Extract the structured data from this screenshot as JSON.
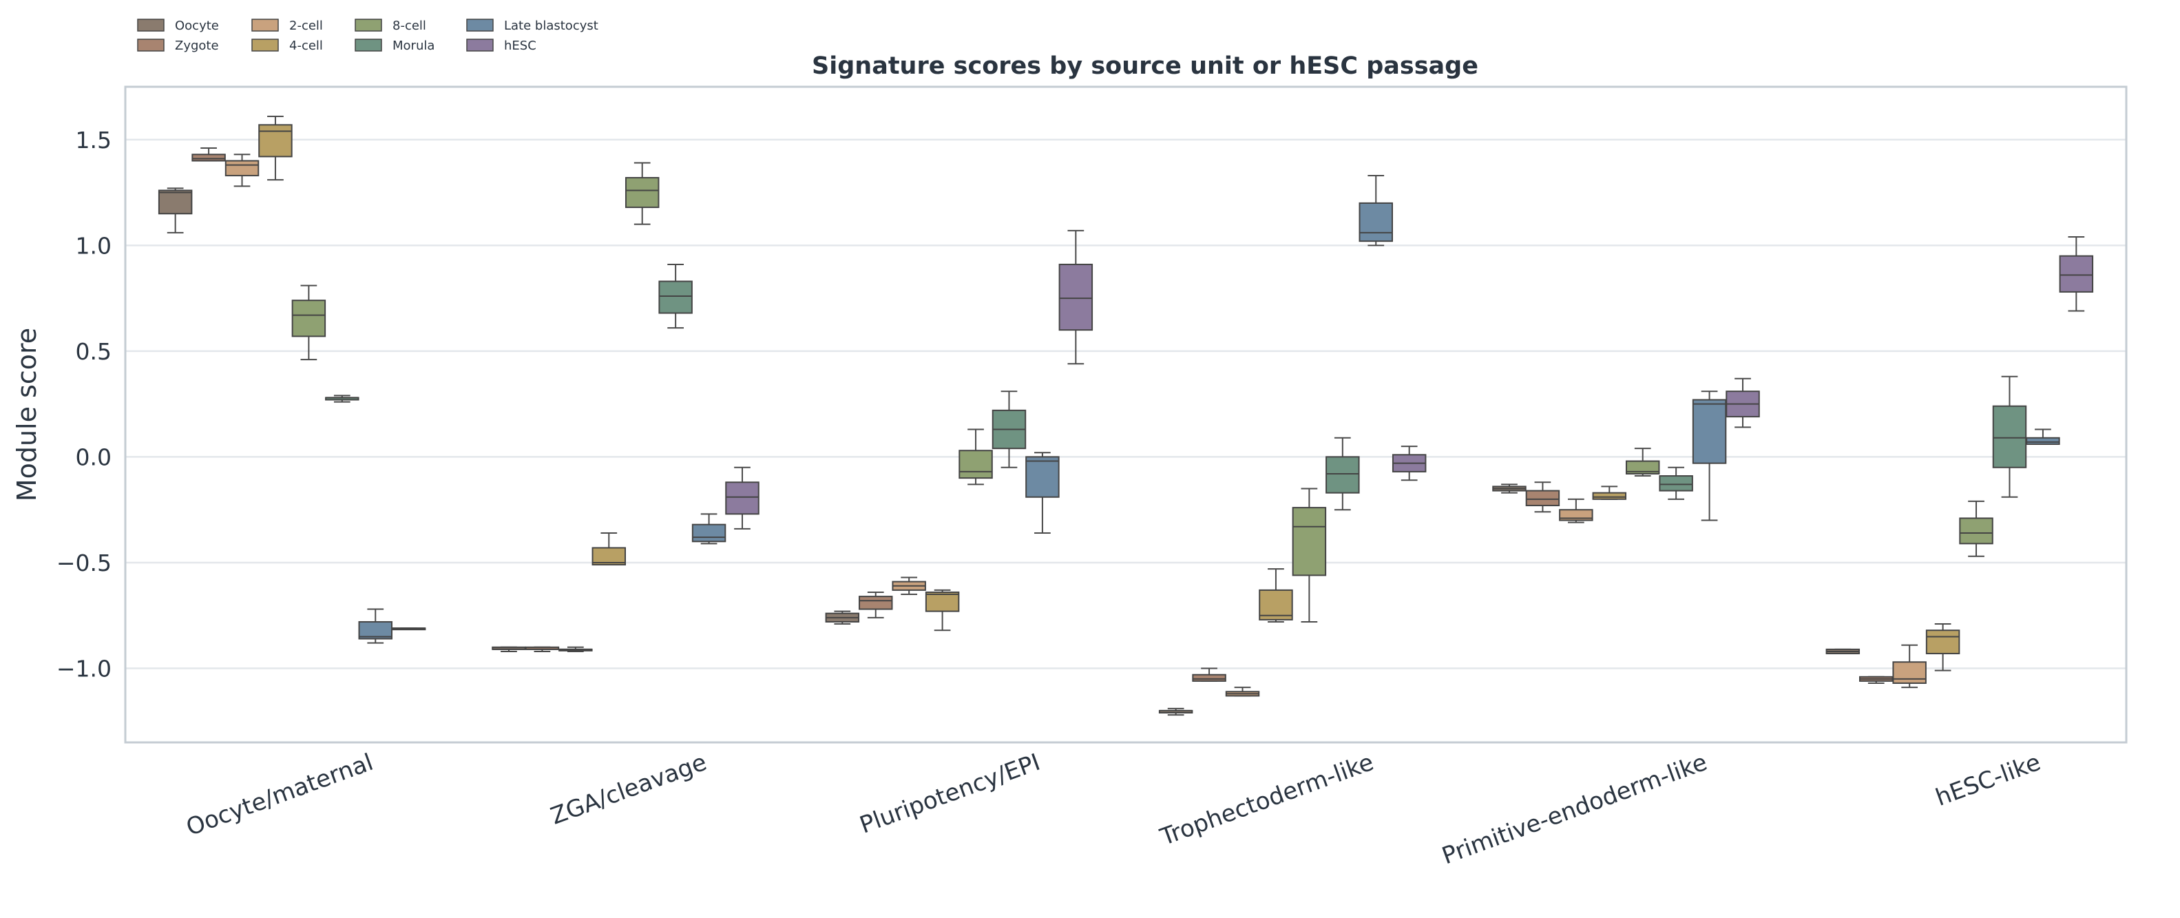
{
  "chart_data": {
    "type": "box",
    "title": "Signature scores by source unit or hESC passage",
    "xlabel": "",
    "ylabel": "Module score",
    "ylim": [
      -1.35,
      1.75
    ],
    "yticks": [
      -1.0,
      -0.5,
      0.0,
      0.5,
      1.0,
      1.5
    ],
    "ytick_labels": [
      "−1.0",
      "−0.5",
      "0.0",
      "0.5",
      "1.0",
      "1.5"
    ],
    "grid": "horizontal",
    "legend_position": "top-left, above plot",
    "categories": [
      "Oocyte/maternal",
      "ZGA/cleavage",
      "Pluripotency/EPI",
      "Trophectoderm-like",
      "Primitive-endoderm-like",
      "hESC-like"
    ],
    "series": [
      {
        "name": "Oocyte",
        "color": "#8a7b6e",
        "boxes": [
          {
            "whislo": 1.06,
            "q1": 1.15,
            "med": 1.25,
            "q3": 1.26,
            "whishi": 1.27
          },
          {
            "whislo": -0.92,
            "q1": -0.91,
            "med": -0.91,
            "q3": -0.9,
            "whishi": -0.9
          },
          {
            "whislo": -0.79,
            "q1": -0.78,
            "med": -0.76,
            "q3": -0.74,
            "whishi": -0.73
          },
          {
            "whislo": -1.22,
            "q1": -1.21,
            "med": -1.2,
            "q3": -1.2,
            "whishi": -1.19
          },
          {
            "whislo": -0.17,
            "q1": -0.16,
            "med": -0.15,
            "q3": -0.14,
            "whishi": -0.13
          },
          {
            "whislo": -0.93,
            "q1": -0.93,
            "med": -0.92,
            "q3": -0.91,
            "whishi": -0.91
          }
        ]
      },
      {
        "name": "Zygote",
        "color": "#a88470",
        "boxes": [
          {
            "whislo": 1.4,
            "q1": 1.4,
            "med": 1.41,
            "q3": 1.43,
            "whishi": 1.46
          },
          {
            "whislo": -0.92,
            "q1": -0.91,
            "med": -0.91,
            "q3": -0.9,
            "whishi": -0.9
          },
          {
            "whislo": -0.76,
            "q1": -0.72,
            "med": -0.68,
            "q3": -0.66,
            "whishi": -0.64
          },
          {
            "whislo": -1.06,
            "q1": -1.06,
            "med": -1.05,
            "q3": -1.03,
            "whishi": -1.0
          },
          {
            "whislo": -0.26,
            "q1": -0.23,
            "med": -0.2,
            "q3": -0.16,
            "whishi": -0.12
          },
          {
            "whislo": -1.07,
            "q1": -1.06,
            "med": -1.05,
            "q3": -1.04,
            "whishi": -1.04
          }
        ]
      },
      {
        "name": "2-cell",
        "color": "#c9a27e",
        "boxes": [
          {
            "whislo": 1.28,
            "q1": 1.33,
            "med": 1.38,
            "q3": 1.4,
            "whishi": 1.43
          },
          {
            "whislo": -0.92,
            "q1": -0.91,
            "med": -0.91,
            "q3": -0.91,
            "whishi": -0.9
          },
          {
            "whislo": -0.65,
            "q1": -0.63,
            "med": -0.61,
            "q3": -0.59,
            "whishi": -0.57
          },
          {
            "whislo": -1.13,
            "q1": -1.13,
            "med": -1.12,
            "q3": -1.11,
            "whishi": -1.09
          },
          {
            "whislo": -0.31,
            "q1": -0.3,
            "med": -0.29,
            "q3": -0.25,
            "whishi": -0.2
          },
          {
            "whislo": -1.09,
            "q1": -1.07,
            "med": -1.05,
            "q3": -0.97,
            "whishi": -0.89
          }
        ]
      },
      {
        "name": "4-cell",
        "color": "#b8a064",
        "boxes": [
          {
            "whislo": 1.31,
            "q1": 1.42,
            "med": 1.54,
            "q3": 1.57,
            "whishi": 1.61
          },
          {
            "whislo": -0.51,
            "q1": -0.51,
            "med": -0.5,
            "q3": -0.43,
            "whishi": -0.36
          },
          {
            "whislo": -0.82,
            "q1": -0.73,
            "med": -0.65,
            "q3": -0.64,
            "whishi": -0.63
          },
          {
            "whislo": -0.78,
            "q1": -0.77,
            "med": -0.75,
            "q3": -0.63,
            "whishi": -0.53
          },
          {
            "whislo": -0.2,
            "q1": -0.2,
            "med": -0.19,
            "q3": -0.17,
            "whishi": -0.14
          },
          {
            "whislo": -1.01,
            "q1": -0.93,
            "med": -0.85,
            "q3": -0.82,
            "whishi": -0.79
          }
        ]
      },
      {
        "name": "8-cell",
        "color": "#8fa172",
        "boxes": [
          {
            "whislo": 0.46,
            "q1": 0.57,
            "med": 0.67,
            "q3": 0.74,
            "whishi": 0.81
          },
          {
            "whislo": 1.1,
            "q1": 1.18,
            "med": 1.26,
            "q3": 1.32,
            "whishi": 1.39
          },
          {
            "whislo": -0.13,
            "q1": -0.1,
            "med": -0.07,
            "q3": 0.03,
            "whishi": 0.13
          },
          {
            "whislo": -0.78,
            "q1": -0.56,
            "med": -0.33,
            "q3": -0.24,
            "whishi": -0.15
          },
          {
            "whislo": -0.09,
            "q1": -0.08,
            "med": -0.07,
            "q3": -0.02,
            "whishi": 0.04
          },
          {
            "whislo": -0.47,
            "q1": -0.41,
            "med": -0.36,
            "q3": -0.29,
            "whishi": -0.21
          }
        ]
      },
      {
        "name": "Morula",
        "color": "#6f9382",
        "boxes": [
          {
            "whislo": 0.26,
            "q1": 0.27,
            "med": 0.28,
            "q3": 0.28,
            "whishi": 0.29
          },
          {
            "whislo": 0.61,
            "q1": 0.68,
            "med": 0.76,
            "q3": 0.83,
            "whishi": 0.91
          },
          {
            "whislo": -0.05,
            "q1": 0.04,
            "med": 0.13,
            "q3": 0.22,
            "whishi": 0.31
          },
          {
            "whislo": -0.25,
            "q1": -0.17,
            "med": -0.08,
            "q3": 0.0,
            "whishi": 0.09
          },
          {
            "whislo": -0.2,
            "q1": -0.16,
            "med": -0.13,
            "q3": -0.09,
            "whishi": -0.05
          },
          {
            "whislo": -0.19,
            "q1": -0.05,
            "med": 0.09,
            "q3": 0.24,
            "whishi": 0.38
          }
        ]
      },
      {
        "name": "Late blastocyst",
        "color": "#6d8aa3",
        "boxes": [
          {
            "whislo": -0.88,
            "q1": -0.86,
            "med": -0.85,
            "q3": -0.78,
            "whishi": -0.72
          },
          {
            "whislo": -0.41,
            "q1": -0.4,
            "med": -0.38,
            "q3": -0.32,
            "whishi": -0.27
          },
          {
            "whislo": -0.36,
            "q1": -0.19,
            "med": -0.02,
            "q3": 0.0,
            "whishi": 0.02
          },
          {
            "whislo": 1.0,
            "q1": 1.02,
            "med": 1.06,
            "q3": 1.2,
            "whishi": 1.33
          },
          {
            "whislo": -0.3,
            "q1": -0.03,
            "med": 0.25,
            "q3": 0.27,
            "whishi": 0.31
          },
          {
            "whislo": 0.06,
            "q1": 0.06,
            "med": 0.07,
            "q3": 0.09,
            "whishi": 0.13
          }
        ]
      },
      {
        "name": "hESC",
        "color": "#8c7b9e",
        "boxes": [
          {
            "whislo": -0.81,
            "q1": -0.81,
            "med": -0.81,
            "q3": -0.81,
            "whishi": -0.81
          },
          {
            "whislo": -0.34,
            "q1": -0.27,
            "med": -0.19,
            "q3": -0.12,
            "whishi": -0.05
          },
          {
            "whislo": 0.44,
            "q1": 0.6,
            "med": 0.75,
            "q3": 0.91,
            "whishi": 1.07
          },
          {
            "whislo": -0.11,
            "q1": -0.07,
            "med": -0.03,
            "q3": 0.01,
            "whishi": 0.05
          },
          {
            "whislo": 0.14,
            "q1": 0.19,
            "med": 0.25,
            "q3": 0.31,
            "whishi": 0.37
          },
          {
            "whislo": 0.69,
            "q1": 0.78,
            "med": 0.86,
            "q3": 0.95,
            "whishi": 1.04
          }
        ]
      }
    ]
  }
}
